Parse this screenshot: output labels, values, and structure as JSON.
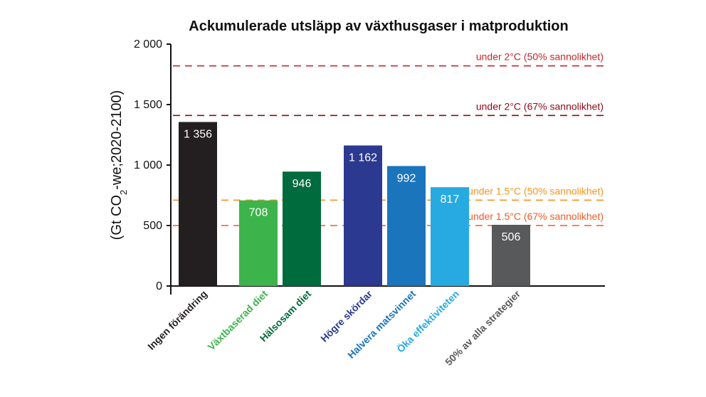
{
  "chart_data": {
    "type": "bar",
    "title": "Ackumulerade utsläpp av växthusgaser i matproduktion",
    "ylabel_main": "(Gt CO",
    "ylabel_sub": "2",
    "ylabel_rest": "-we;2020-2100)",
    "ylim": [
      0,
      2000
    ],
    "yticks": [
      0,
      500,
      1000,
      1500,
      2000
    ],
    "ytick_labels": [
      "0",
      "500",
      "1 000",
      "1 500",
      "2 000"
    ],
    "categories": [
      "Ingen förändring",
      "Växtbaserad diet",
      "Hälsosam diet",
      "Högre skördar",
      "Halvera matsvinnet",
      "Öka effektiviteten",
      "50% av alla strategier"
    ],
    "values": [
      1356,
      708,
      946,
      1162,
      992,
      817,
      506
    ],
    "value_labels": [
      "1 356",
      "708",
      "946",
      "1 162",
      "992",
      "817",
      "506"
    ],
    "bar_colors": [
      "#231f20",
      "#3cb44b",
      "#006b3c",
      "#2b3990",
      "#1b75bc",
      "#27aae1",
      "#58595b"
    ],
    "label_colors": [
      "#231f20",
      "#3cb44b",
      "#006b3c",
      "#2b3990",
      "#1b75bc",
      "#27aae1",
      "#58595b"
    ],
    "thresholds": [
      {
        "value": 1820,
        "label": "under 2°C (50% sannolikhet)",
        "color": "#c1272d"
      },
      {
        "value": 1410,
        "label": "under 2°C (67% sannolikhet)",
        "color": "#8b0a1a"
      },
      {
        "value": 710,
        "label": "under 1.5°C (50% sannolikhet)",
        "color": "#f7931e"
      },
      {
        "value": 500,
        "label": "under 1.5°C (67% sannolikhet)",
        "color": "#f15a24"
      }
    ],
    "grid": false,
    "legend": "none"
  }
}
